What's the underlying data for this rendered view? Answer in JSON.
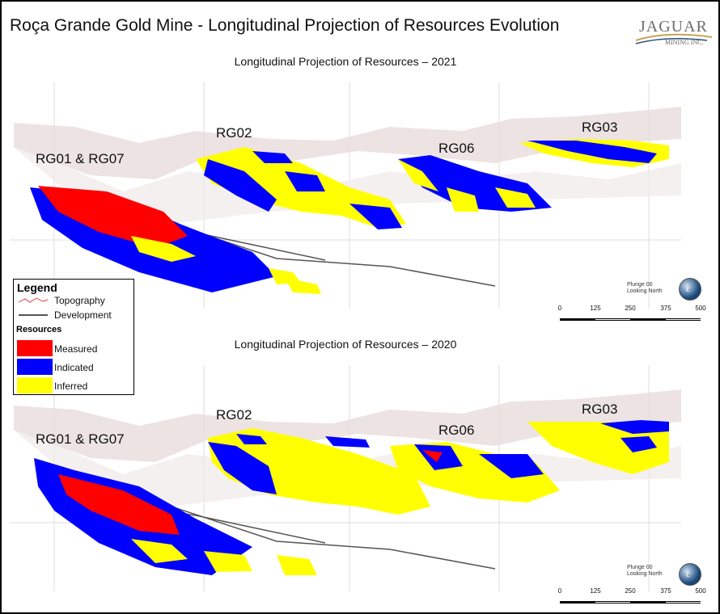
{
  "title": "Roça Grande Gold Mine - Longitudinal Projection of Resources Evolution",
  "logo": {
    "word": "JAGUAR",
    "sub": "MINING INC."
  },
  "colors": {
    "measured": "#ff0000",
    "indicated": "#0000ff",
    "inferred": "#ffff00"
  },
  "panels": [
    {
      "title": "Longitudinal Projection of Resources – 2021",
      "labels": {
        "rg01": "RG01 & RG07",
        "rg02": "RG02",
        "rg06": "RG06",
        "rg03": "RG03"
      },
      "plunge": [
        "Plunge 00",
        "Looking North"
      ],
      "scale": [
        "0",
        "125",
        "250",
        "375",
        "500"
      ]
    },
    {
      "title": "Longitudinal Projection of Resources – 2020",
      "labels": {
        "rg01": "RG01 & RG07",
        "rg02": "RG02",
        "rg06": "RG06",
        "rg03": "RG03"
      },
      "plunge": [
        "Plunge 00",
        "Looking North"
      ],
      "scale": [
        "0",
        "125",
        "250",
        "375",
        "500"
      ]
    }
  ],
  "legend": {
    "title": "Legend",
    "topography": "Topography",
    "development": "Development",
    "resources": "Resources",
    "measured": "Measured",
    "indicated": "Indicated",
    "inferred": "Inferred"
  }
}
